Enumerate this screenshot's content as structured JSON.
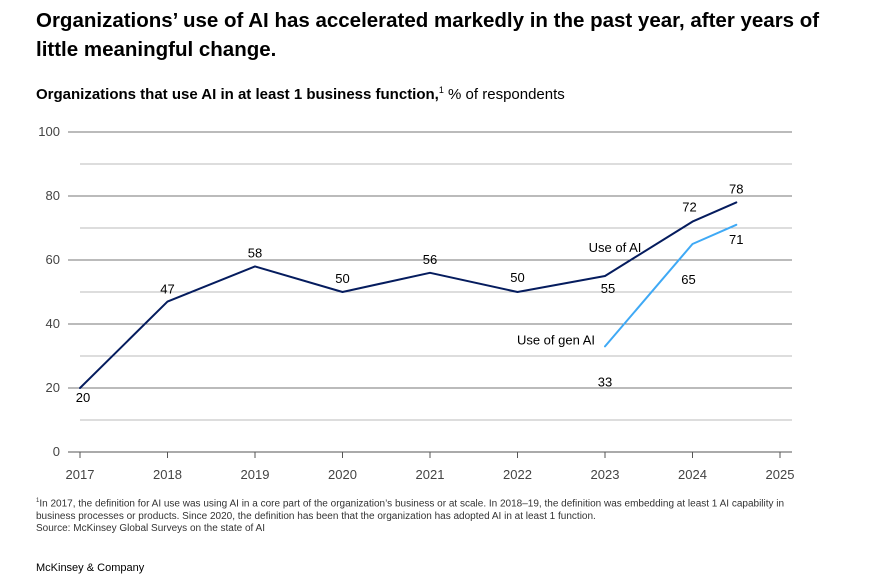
{
  "headline": "Organizations’ use of AI has accelerated markedly in the past year, after years of little meaningful change.",
  "subtitle_bold": "Organizations that use AI in at least 1 business function,",
  "subtitle_sup": "1",
  "subtitle_unit": "% of respondents",
  "footnote": {
    "marker": "1",
    "text": "In 2017, the definition for AI use was using AI in a core part of the organization’s business or at scale. In 2018–19, the definition was embedding at least 1 AI capability in business processes or products. Since 2020, the definition has been that the organization has adopted AI in at least 1 function.",
    "source": "Source: McKinsey Global Surveys on the state of AI"
  },
  "brand": "McKinsey & Company",
  "chart_data": {
    "type": "line",
    "ylim": [
      0,
      100
    ],
    "xlim": [
      2017,
      2025
    ],
    "y_ticks": [
      0,
      20,
      40,
      60,
      80,
      100
    ],
    "x_ticks": [
      2017,
      2018,
      2019,
      2020,
      2021,
      2022,
      2023,
      2024,
      2025
    ],
    "grid": true,
    "series": [
      {
        "name": "Use of AI",
        "color": "#051c5e",
        "points": [
          {
            "x": 2017.0,
            "y": 20,
            "label": "20"
          },
          {
            "x": 2018.0,
            "y": 47,
            "label": "47"
          },
          {
            "x": 2019.0,
            "y": 58,
            "label": "58"
          },
          {
            "x": 2020.0,
            "y": 50,
            "label": "50"
          },
          {
            "x": 2021.0,
            "y": 56,
            "label": "56"
          },
          {
            "x": 2022.0,
            "y": 50,
            "label": "50"
          },
          {
            "x": 2023.0,
            "y": 55,
            "label": "55"
          },
          {
            "x": 2024.0,
            "y": 72,
            "label": "72"
          },
          {
            "x": 2024.5,
            "y": 78,
            "label": "78"
          }
        ]
      },
      {
        "name": "Use of gen AI",
        "color": "#3fa9f5",
        "points": [
          {
            "x": 2023.0,
            "y": 33,
            "label": "33"
          },
          {
            "x": 2024.0,
            "y": 65,
            "label": "65"
          },
          {
            "x": 2024.5,
            "y": 71,
            "label": "71"
          }
        ]
      }
    ]
  }
}
